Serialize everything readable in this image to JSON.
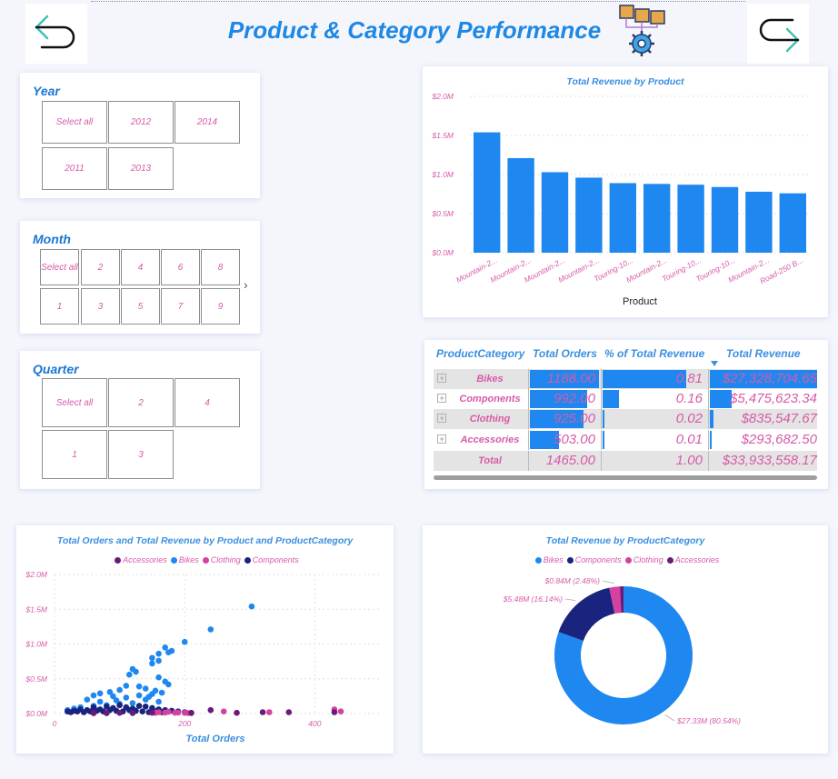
{
  "header": {
    "title": "Product & Category Performance",
    "back_icon": "back-arrow-icon",
    "forward_icon": "forward-arrow-icon",
    "logo_icon": "product-category-logo-icon"
  },
  "slicers": {
    "year": {
      "title": "Year",
      "options": [
        "Select all",
        "2012",
        "2014",
        "2011",
        "2013"
      ]
    },
    "month": {
      "title": "Month",
      "options": [
        "Select all",
        "2",
        "4",
        "6",
        "8",
        "1",
        "3",
        "5",
        "7",
        "9"
      ]
    },
    "quarter": {
      "title": "Quarter",
      "options": [
        "Select all",
        "2",
        "4",
        "1",
        "3"
      ]
    }
  },
  "bar_chart": {
    "chart_data": {
      "type": "bar",
      "title": "Total Revenue by Product",
      "xlabel": "Product",
      "ylabel": "",
      "ylim": [
        0,
        2000000
      ],
      "y_ticks": [
        "$0.0M",
        "$0.5M",
        "$1.0M",
        "$1.5M",
        "$2.0M"
      ],
      "categories": [
        "Mountain-2...",
        "Mountain-2...",
        "Mountain-2...",
        "Mountain-2...",
        "Touring-10...",
        "Mountain-2...",
        "Touring-10...",
        "Touring-10...",
        "Mountain-2...",
        "Road-250 B..."
      ],
      "values": [
        1540000,
        1210000,
        1030000,
        960000,
        890000,
        880000,
        870000,
        840000,
        780000,
        760000
      ],
      "color": "#1e88f0"
    }
  },
  "table": {
    "columns": [
      "ProductCategory",
      "Total Orders",
      "% of Total Revenue",
      "Total Revenue"
    ],
    "rows": [
      {
        "category": "Bikes",
        "orders": "1188.00",
        "pct": "0.81",
        "revenue": "$27,328,704.65",
        "orders_frac": 1.0,
        "pct_frac": 0.81,
        "rev_frac": 1.0
      },
      {
        "category": "Components",
        "orders": "992.00",
        "pct": "0.16",
        "revenue": "$5,475,623.34",
        "orders_frac": 0.835,
        "pct_frac": 0.16,
        "rev_frac": 0.2
      },
      {
        "category": "Clothing",
        "orders": "925.00",
        "pct": "0.02",
        "revenue": "$835,547.67",
        "orders_frac": 0.779,
        "pct_frac": 0.02,
        "rev_frac": 0.031
      },
      {
        "category": "Accessories",
        "orders": "503.00",
        "pct": "0.01",
        "revenue": "$293,682.50",
        "orders_frac": 0.423,
        "pct_frac": 0.01,
        "rev_frac": 0.011
      }
    ],
    "total": {
      "label": "Total",
      "orders": "1465.00",
      "pct": "1.00",
      "revenue": "$33,933,558.17"
    },
    "sort_icon": "sort-desc-icon"
  },
  "scatter": {
    "chart_data": {
      "type": "scatter",
      "title": "Total Orders and Total Revenue by Product and ProductCategory",
      "xlabel": "Total Orders",
      "ylabel": "",
      "xlim": [
        0,
        500
      ],
      "ylim": [
        0,
        2000000
      ],
      "x_ticks": [
        0,
        200,
        400
      ],
      "y_ticks": [
        "$0.0M",
        "$0.5M",
        "$1.0M",
        "$1.5M",
        "$2.0M"
      ],
      "legend": [
        "Accessories",
        "Bikes",
        "Clothing",
        "Components"
      ],
      "colors": {
        "Accessories": "#6a1b7a",
        "Bikes": "#1e88f0",
        "Clothing": "#d6409f",
        "Components": "#1a237e"
      },
      "series": [
        {
          "name": "Bikes",
          "points": [
            [
              303,
              1540000
            ],
            [
              240,
              1210000
            ],
            [
              200,
              1030000
            ],
            [
              170,
              950000
            ],
            [
              180,
              900000
            ],
            [
              175,
              880000
            ],
            [
              160,
              860000
            ],
            [
              150,
              800000
            ],
            [
              160,
              760000
            ],
            [
              150,
              720000
            ],
            [
              120,
              640000
            ],
            [
              125,
              600000
            ],
            [
              115,
              560000
            ],
            [
              160,
              520000
            ],
            [
              170,
              460000
            ],
            [
              175,
              420000
            ],
            [
              110,
              400000
            ],
            [
              130,
              390000
            ],
            [
              140,
              360000
            ],
            [
              100,
              340000
            ],
            [
              85,
              310000
            ],
            [
              70,
              290000
            ],
            [
              60,
              260000
            ],
            [
              50,
              200000
            ],
            [
              90,
              250000
            ],
            [
              110,
              230000
            ],
            [
              130,
              260000
            ],
            [
              150,
              280000
            ],
            [
              140,
              200000
            ],
            [
              160,
              170000
            ],
            [
              120,
              150000
            ],
            [
              100,
              140000
            ],
            [
              80,
              120000
            ],
            [
              60,
              110000
            ],
            [
              40,
              90000
            ],
            [
              30,
              70000
            ],
            [
              20,
              50000
            ],
            [
              70,
              170000
            ],
            [
              95,
              190000
            ],
            [
              145,
              240000
            ],
            [
              155,
              330000
            ],
            [
              165,
              300000
            ]
          ]
        },
        {
          "name": "Components",
          "points": [
            [
              20,
              30000
            ],
            [
              30,
              40000
            ],
            [
              40,
              60000
            ],
            [
              50,
              50000
            ],
            [
              60,
              90000
            ],
            [
              70,
              60000
            ],
            [
              80,
              100000
            ],
            [
              90,
              80000
            ],
            [
              100,
              120000
            ],
            [
              110,
              90000
            ],
            [
              120,
              70000
            ],
            [
              130,
              110000
            ],
            [
              140,
              100000
            ],
            [
              150,
              80000
            ],
            [
              160,
              60000
            ],
            [
              170,
              50000
            ],
            [
              180,
              40000
            ],
            [
              190,
              30000
            ],
            [
              45,
              20000
            ],
            [
              55,
              30000
            ],
            [
              65,
              40000
            ],
            [
              75,
              30000
            ],
            [
              85,
              50000
            ],
            [
              95,
              40000
            ],
            [
              105,
              30000
            ],
            [
              115,
              50000
            ],
            [
              125,
              40000
            ],
            [
              135,
              30000
            ],
            [
              145,
              20000
            ],
            [
              155,
              30000
            ],
            [
              165,
              20000
            ],
            [
              35,
              30000
            ],
            [
              25,
              20000
            ],
            [
              200,
              20000
            ],
            [
              210,
              10000
            ]
          ]
        },
        {
          "name": "Clothing",
          "points": [
            [
              160,
              20000
            ],
            [
              170,
              15000
            ],
            [
              185,
              12000
            ],
            [
              200,
              10000
            ],
            [
              260,
              30000
            ],
            [
              330,
              20000
            ],
            [
              430,
              60000
            ],
            [
              440,
              30000
            ],
            [
              175,
              25000
            ],
            [
              190,
              15000
            ],
            [
              155,
              10000
            ],
            [
              205,
              8000
            ]
          ]
        },
        {
          "name": "Accessories",
          "points": [
            [
              240,
              50000
            ],
            [
              280,
              10000
            ],
            [
              320,
              20000
            ],
            [
              360,
              20000
            ],
            [
              430,
              20000
            ],
            [
              100,
              10000
            ],
            [
              120,
              8000
            ],
            [
              150,
              12000
            ],
            [
              210,
              8000
            ],
            [
              60,
              5000
            ],
            [
              80,
              6000
            ]
          ]
        }
      ]
    }
  },
  "donut": {
    "chart_data": {
      "type": "pie",
      "title": "Total Revenue by ProductCategory",
      "legend": [
        "Bikes",
        "Components",
        "Clothing",
        "Accessories"
      ],
      "slices": [
        {
          "name": "Bikes",
          "value": 27.33,
          "percent": 80.54,
          "label": "$27.33M (80.54%)",
          "color": "#1e88f0"
        },
        {
          "name": "Components",
          "value": 5.48,
          "percent": 16.14,
          "label": "$5.48M (16.14%)",
          "color": "#1a237e"
        },
        {
          "name": "Clothing",
          "value": 0.84,
          "percent": 2.48,
          "label": "$0.84M (2.48%)",
          "color": "#d6409f"
        },
        {
          "name": "Accessories",
          "value": 0.29,
          "percent": 0.84,
          "label": "",
          "color": "#6a1b7a"
        }
      ]
    }
  }
}
